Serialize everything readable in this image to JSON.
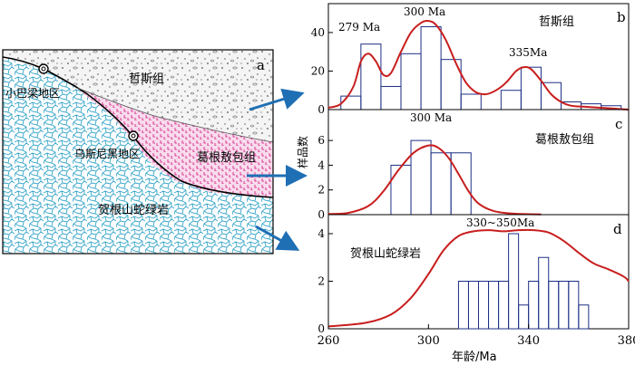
{
  "colors": {
    "curve": "#c81e1e",
    "arrow": "#1f6fb4",
    "cyan": "#3aa7c9",
    "magenta": "#d0147c",
    "hist": "#1d2f86"
  },
  "map": {
    "label": "a",
    "units": {
      "zhesi": "哲斯组",
      "gegenao": "葛根敖包组",
      "ophiolite": "贺根山蛇绿岩"
    },
    "localities": [
      {
        "name": "小巴梁地区"
      },
      {
        "name": "乌斯尼黑地区"
      }
    ]
  },
  "chart_data": {
    "type": "bar",
    "shared_xaxis": {
      "xlabel": "年龄/Ma",
      "xlim": [
        260,
        380
      ],
      "ticks": [
        260,
        300,
        340,
        380
      ]
    },
    "ylabel": "样品数",
    "panels": [
      {
        "id": "b",
        "unit": "哲斯组",
        "ylim": [
          0,
          55
        ],
        "yticks": [
          0,
          20,
          40
        ],
        "bin_width": 8,
        "bins": [
          {
            "x0": 265,
            "count": 7
          },
          {
            "x0": 273,
            "count": 34
          },
          {
            "x0": 281,
            "count": 12
          },
          {
            "x0": 289,
            "count": 29
          },
          {
            "x0": 297,
            "count": 43
          },
          {
            "x0": 305,
            "count": 26
          },
          {
            "x0": 313,
            "count": 8
          },
          {
            "x0": 321,
            "count": 0
          },
          {
            "x0": 329,
            "count": 10
          },
          {
            "x0": 337,
            "count": 22
          },
          {
            "x0": 345,
            "count": 14
          },
          {
            "x0": 353,
            "count": 4
          },
          {
            "x0": 361,
            "count": 3
          },
          {
            "x0": 369,
            "count": 2
          }
        ],
        "curve": [
          [
            260,
            1
          ],
          [
            265,
            3
          ],
          [
            270,
            12
          ],
          [
            273,
            25
          ],
          [
            276,
            29
          ],
          [
            279,
            25
          ],
          [
            282,
            18
          ],
          [
            285,
            19
          ],
          [
            289,
            30
          ],
          [
            293,
            40
          ],
          [
            297,
            45
          ],
          [
            300,
            46
          ],
          [
            303,
            44
          ],
          [
            307,
            36
          ],
          [
            311,
            24
          ],
          [
            315,
            14
          ],
          [
            319,
            9
          ],
          [
            323,
            8
          ],
          [
            327,
            10
          ],
          [
            331,
            14
          ],
          [
            335,
            20
          ],
          [
            338,
            22
          ],
          [
            341,
            21
          ],
          [
            345,
            15
          ],
          [
            349,
            8
          ],
          [
            353,
            4
          ],
          [
            357,
            2
          ],
          [
            362,
            1.5
          ],
          [
            368,
            1
          ],
          [
            374,
            0.5
          ],
          [
            380,
            0
          ]
        ],
        "peaks": [
          "279 Ma",
          "300 Ma",
          "335Ma"
        ]
      },
      {
        "id": "c",
        "unit": "葛根敖包组",
        "ylim": [
          0,
          8.5
        ],
        "yticks": [
          0,
          2,
          4,
          6
        ],
        "bin_width": 8,
        "bins": [
          {
            "x0": 285,
            "count": 4
          },
          {
            "x0": 293,
            "count": 6
          },
          {
            "x0": 301,
            "count": 5
          },
          {
            "x0": 309,
            "count": 5
          }
        ],
        "curve": [
          [
            260,
            0.05
          ],
          [
            268,
            0.15
          ],
          [
            276,
            0.7
          ],
          [
            282,
            1.9
          ],
          [
            288,
            3.6
          ],
          [
            294,
            5.0
          ],
          [
            300,
            5.6
          ],
          [
            304,
            5.4
          ],
          [
            308,
            4.6
          ],
          [
            312,
            3.3
          ],
          [
            316,
            1.9
          ],
          [
            320,
            0.9
          ],
          [
            326,
            0.3
          ],
          [
            334,
            0.08
          ],
          [
            345,
            0.02
          ]
        ],
        "peaks": [
          "300 Ma"
        ]
      },
      {
        "id": "d",
        "unit": "贺根山蛇绿岩",
        "ylim": [
          0,
          4.8
        ],
        "yticks": [
          0,
          2,
          4
        ],
        "bin_width": 4,
        "bins": [
          {
            "x0": 312,
            "count": 2
          },
          {
            "x0": 316,
            "count": 2
          },
          {
            "x0": 320,
            "count": 2
          },
          {
            "x0": 324,
            "count": 2
          },
          {
            "x0": 328,
            "count": 2
          },
          {
            "x0": 332,
            "count": 4
          },
          {
            "x0": 336,
            "count": 1
          },
          {
            "x0": 340,
            "count": 2
          },
          {
            "x0": 344,
            "count": 3
          },
          {
            "x0": 348,
            "count": 2
          },
          {
            "x0": 352,
            "count": 2
          },
          {
            "x0": 356,
            "count": 2
          },
          {
            "x0": 360,
            "count": 1
          }
        ],
        "curve": [
          [
            260,
            0.1
          ],
          [
            275,
            0.25
          ],
          [
            285,
            0.6
          ],
          [
            293,
            1.3
          ],
          [
            300,
            2.3
          ],
          [
            306,
            3.3
          ],
          [
            312,
            3.9
          ],
          [
            318,
            4.1
          ],
          [
            324,
            4.15
          ],
          [
            330,
            4.1
          ],
          [
            336,
            4.15
          ],
          [
            342,
            4.15
          ],
          [
            348,
            4.05
          ],
          [
            354,
            3.7
          ],
          [
            360,
            3.2
          ],
          [
            366,
            2.75
          ],
          [
            372,
            2.5
          ],
          [
            378,
            2.2
          ],
          [
            380,
            2.0
          ]
        ],
        "peaks": [
          "330~350Ma"
        ]
      }
    ]
  }
}
